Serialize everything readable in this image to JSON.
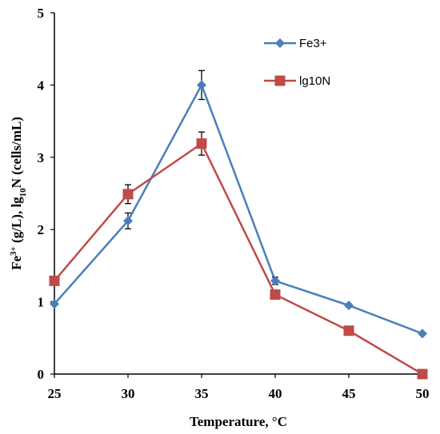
{
  "chart_data": {
    "type": "line",
    "title": "",
    "xlabel": "Temperature, °C",
    "ylabel": {
      "parts": [
        {
          "text": "Fe",
          "shift": "none"
        },
        {
          "text": "3+",
          "shift": "super"
        },
        {
          "text": " (g/L),  lg",
          "shift": "none"
        },
        {
          "text": "10",
          "shift": "sub"
        },
        {
          "text": "N (cells/mL)",
          "shift": "none"
        }
      ]
    },
    "x": [
      25,
      30,
      35,
      40,
      45,
      50
    ],
    "xlim": [
      25,
      50
    ],
    "ylim": [
      0,
      5
    ],
    "x_ticks": [
      "25",
      "30",
      "35",
      "40",
      "45",
      "50"
    ],
    "y_ticks": [
      "0",
      "1",
      "2",
      "3",
      "4",
      "5"
    ],
    "grid": false,
    "legend_position": "top-right",
    "series": [
      {
        "name": "Fe3+",
        "color": "#4a7ebb",
        "marker": "diamond",
        "values": [
          0.97,
          2.12,
          4.0,
          1.29,
          0.95,
          0.56
        ],
        "errors": [
          0.0,
          0.11,
          0.2,
          0.05,
          0.02,
          0.0
        ]
      },
      {
        "name": "lg10N",
        "color": "#be4b48",
        "marker": "square",
        "values": [
          1.29,
          2.49,
          3.19,
          1.1,
          0.6,
          0.0
        ],
        "errors": [
          0.0,
          0.13,
          0.16,
          0.0,
          0.0,
          0.0
        ]
      }
    ]
  }
}
